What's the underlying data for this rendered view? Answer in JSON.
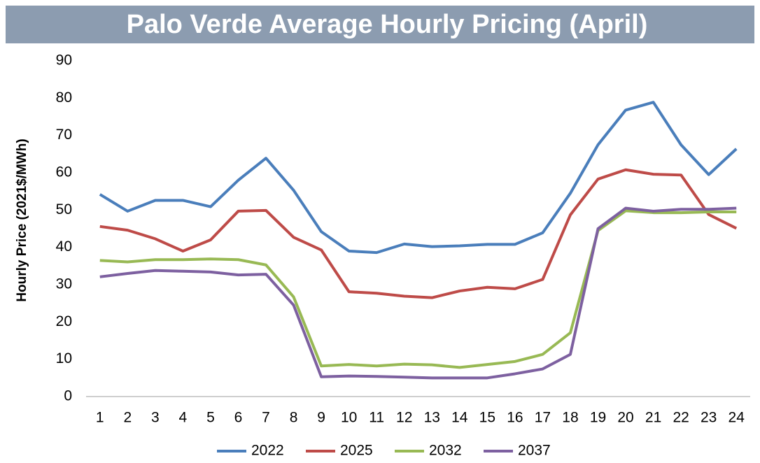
{
  "chart_data": {
    "type": "line",
    "title": "Palo Verde Average Hourly Pricing (April)",
    "ylabel": "Hourly Price (2021$/MWh)",
    "categories": [
      "1",
      "2",
      "3",
      "4",
      "5",
      "6",
      "7",
      "8",
      "9",
      "10",
      "11",
      "12",
      "13",
      "14",
      "15",
      "16",
      "17",
      "18",
      "19",
      "20",
      "21",
      "22",
      "23",
      "24"
    ],
    "series": [
      {
        "name": "2022",
        "color": "#4a7ebb",
        "values": [
          54.2,
          49.7,
          52.6,
          52.6,
          50.9,
          58,
          63.9,
          55.3,
          44.2,
          39,
          38.6,
          40.9,
          40.2,
          40.4,
          40.8,
          40.8,
          43.9,
          54.5,
          67.5,
          76.8,
          78.9,
          67.5,
          59.5,
          66.4
        ]
      },
      {
        "name": "2025",
        "color": "#be4b48",
        "values": [
          45.6,
          44.6,
          42.3,
          39,
          42,
          49.7,
          49.9,
          42.7,
          39.3,
          28.1,
          27.7,
          26.9,
          26.5,
          28.3,
          29.3,
          28.9,
          31.4,
          48.7,
          58.3,
          60.8,
          59.6,
          59.4,
          48.8,
          45.1
        ]
      },
      {
        "name": "2032",
        "color": "#98b954",
        "values": [
          36.5,
          36.1,
          36.7,
          36.7,
          36.9,
          36.7,
          35.3,
          26.7,
          8.2,
          8.6,
          8.2,
          8.7,
          8.5,
          7.8,
          8.6,
          9.4,
          11.3,
          17.1,
          44.5,
          49.8,
          49.3,
          49.3,
          49.5,
          49.5
        ]
      },
      {
        "name": "2037",
        "color": "#7d60a0",
        "values": [
          32.1,
          33,
          33.8,
          33.6,
          33.4,
          32.6,
          32.8,
          24.5,
          5.3,
          5.5,
          5.4,
          5.2,
          5,
          5,
          5,
          6.1,
          7.4,
          11.3,
          45,
          50.5,
          49.7,
          50.2,
          50.2,
          50.5
        ]
      }
    ],
    "ylim": [
      0,
      90
    ],
    "yticks": [
      0,
      10,
      20,
      30,
      40,
      50,
      60,
      70,
      80,
      90
    ],
    "grid": false,
    "legend": "bottom"
  }
}
